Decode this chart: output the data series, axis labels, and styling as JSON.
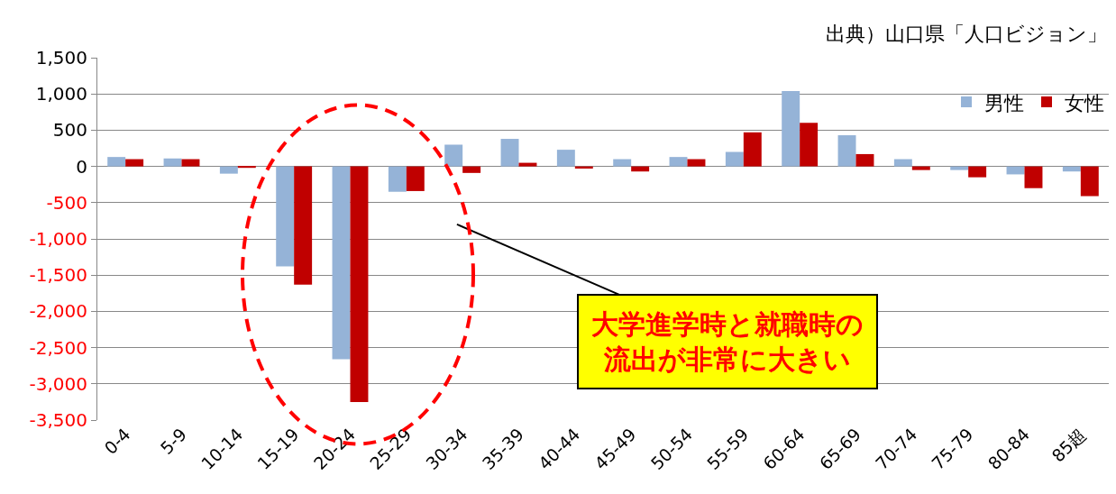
{
  "chart_data": {
    "type": "bar",
    "categories": [
      "0-4",
      "5-9",
      "10-14",
      "15-19",
      "20-24",
      "25-29",
      "30-34",
      "35-39",
      "40-44",
      "45-49",
      "50-54",
      "55-59",
      "60-64",
      "65-69",
      "70-74",
      "75-79",
      "80-84",
      "85超"
    ],
    "series": [
      {
        "name": "男性",
        "color": "#95b3d7",
        "values": [
          130,
          110,
          -100,
          -1380,
          -2660,
          -350,
          300,
          380,
          230,
          100,
          130,
          200,
          1040,
          430,
          100,
          -50,
          -110,
          -70
        ]
      },
      {
        "name": "女性",
        "color": "#c00000",
        "values": [
          100,
          100,
          -20,
          -1630,
          -3250,
          -340,
          -90,
          50,
          -30,
          -70,
          100,
          470,
          600,
          170,
          -50,
          -150,
          -300,
          -410
        ]
      }
    ],
    "ylim": [
      -3500,
      1500
    ],
    "yticks": [
      {
        "value": 1500,
        "label": "1,500"
      },
      {
        "value": 1000,
        "label": "1,000"
      },
      500,
      0,
      -500,
      {
        "value": -1000,
        "label": "-1,000"
      },
      {
        "value": -1500,
        "label": "-1,500"
      },
      {
        "value": -2000,
        "label": "-2,000"
      },
      {
        "value": -2500,
        "label": "-2,500"
      },
      {
        "value": -3000,
        "label": "-3,000"
      },
      {
        "value": -3500,
        "label": "-3,500"
      }
    ],
    "grid": "y",
    "legend": "top right",
    "annotations": [
      "出典）山口県「人口ビジョン」",
      "大学進学時と就職時の流出が非常に大きい"
    ]
  }
}
